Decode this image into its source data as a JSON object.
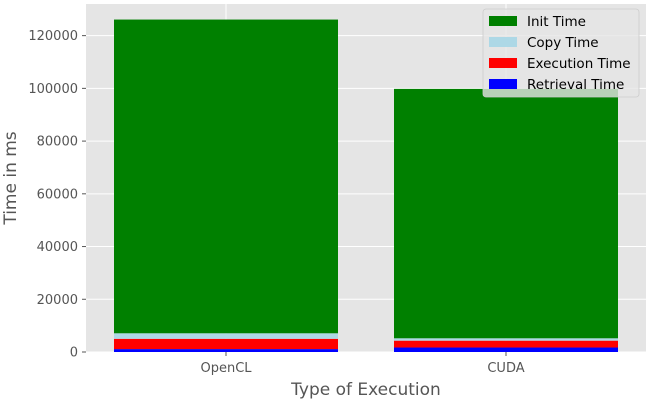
{
  "chart_data": {
    "type": "bar",
    "stacked": true,
    "categories": [
      "OpenCL",
      "CUDA"
    ],
    "series": [
      {
        "name": "Retrieval Time",
        "color": "#0000ff",
        "values": [
          1100,
          1700
        ]
      },
      {
        "name": "Execution Time",
        "color": "#ff0000",
        "values": [
          3900,
          2600
        ]
      },
      {
        "name": "Copy Time",
        "color": "#add8e6",
        "values": [
          2100,
          900
        ]
      },
      {
        "name": "Init Time",
        "color": "#008000",
        "values": [
          119000,
          94600
        ]
      }
    ],
    "legend_order": [
      "Init Time",
      "Copy Time",
      "Execution Time",
      "Retrieval Time"
    ],
    "xlabel": "Type of Execution",
    "ylabel": "Time in ms",
    "ylim": [
      0,
      132000
    ],
    "yticks": [
      0,
      20000,
      40000,
      60000,
      80000,
      100000,
      120000
    ],
    "grid": true,
    "legend_position": "top-right",
    "background": "#e5e5e5",
    "grid_color": "#ffffff"
  }
}
